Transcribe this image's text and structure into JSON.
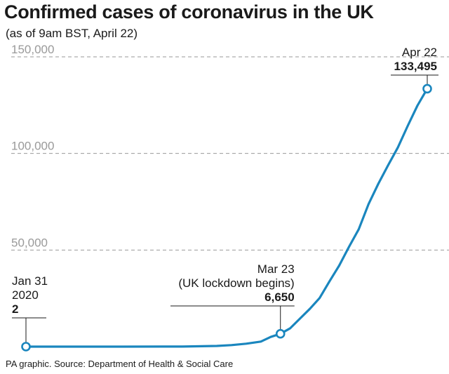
{
  "title": "Confirmed cases of coronavirus in the UK",
  "subtitle": "(as of 9am BST, April 22)",
  "source": "PA graphic. Source: Department of Health & Social Care",
  "colors": {
    "line": "#1a86be",
    "grid": "#9a9a9a",
    "text": "#1a1a1a"
  },
  "chart_data": {
    "type": "line",
    "title": "Confirmed cases of coronavirus in the UK",
    "subtitle": "(as of 9am BST, April 22)",
    "xlabel": "",
    "ylabel": "",
    "ylim": [
      0,
      150000
    ],
    "xlim": [
      "2020-01-31",
      "2020-04-22"
    ],
    "y_ticks": [
      50000,
      100000,
      150000
    ],
    "y_tick_labels": [
      "50,000",
      "100,000",
      "150,000"
    ],
    "grid": "horizontal dashed",
    "legend": "none",
    "series": [
      {
        "x": [
          "2020-01-31",
          "2020-02-10",
          "2020-02-20",
          "2020-02-28",
          "2020-03-03",
          "2020-03-07",
          "2020-03-10",
          "2020-03-13",
          "2020-03-16",
          "2020-03-19",
          "2020-03-21",
          "2020-03-23",
          "2020-03-25",
          "2020-03-27",
          "2020-03-29",
          "2020-03-31",
          "2020-04-02",
          "2020-04-04",
          "2020-04-06",
          "2020-04-08",
          "2020-04-10",
          "2020-04-12",
          "2020-04-14",
          "2020-04-16",
          "2020-04-18",
          "2020-04-20",
          "2020-04-22"
        ],
        "values": [
          2,
          8,
          9,
          20,
          51,
          206,
          373,
          798,
          1543,
          2626,
          5018,
          6650,
          9529,
          14543,
          19522,
          25150,
          33718,
          41903,
          51608,
          60733,
          73758,
          84279,
          93873,
          103093,
          114217,
          124743,
          133495
        ]
      }
    ],
    "annotations": [
      {
        "label_lines": [
          "Jan 31",
          "2020"
        ],
        "value_label": "2",
        "x": "2020-01-31",
        "y": 2
      },
      {
        "label_lines": [
          "Mar 23",
          "(UK lockdown begins)"
        ],
        "value_label": "6,650",
        "x": "2020-03-23",
        "y": 6650
      },
      {
        "label_lines": [
          "Apr 22"
        ],
        "value_label": "133,495",
        "x": "2020-04-22",
        "y": 133495
      }
    ]
  }
}
